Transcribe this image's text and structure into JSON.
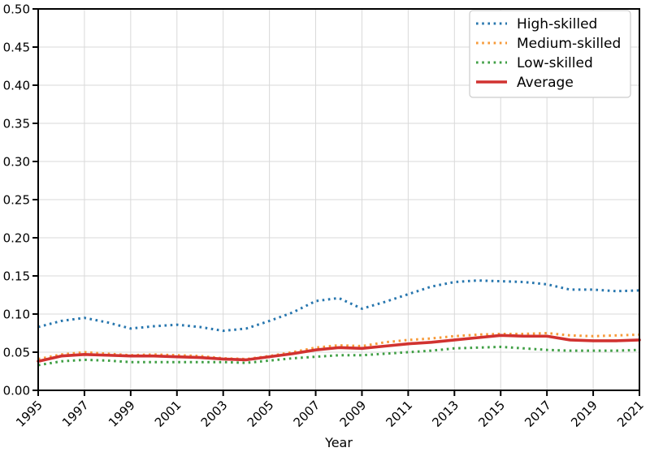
{
  "figure": {
    "background": "#ffffff",
    "grid_color": "#d9d9d9",
    "spine_color": "#000000",
    "legend": {
      "position": "upper right",
      "bg": "#ffffff",
      "border_color": "#cccccc"
    }
  },
  "chart_data": {
    "type": "line",
    "title": "",
    "xlabel": "Year",
    "ylabel": "",
    "grid": true,
    "legend_position": "upper right",
    "xlim": [
      1995,
      2021
    ],
    "ylim": [
      0.0,
      0.5
    ],
    "x": [
      1995,
      1996,
      1997,
      1998,
      1999,
      2000,
      2001,
      2002,
      2003,
      2004,
      2005,
      2006,
      2007,
      2008,
      2009,
      2010,
      2011,
      2012,
      2013,
      2014,
      2015,
      2016,
      2017,
      2018,
      2019,
      2020,
      2021
    ],
    "xtick_values": [
      1995,
      1997,
      1999,
      2001,
      2003,
      2005,
      2007,
      2009,
      2011,
      2013,
      2015,
      2017,
      2019,
      2021
    ],
    "xtick_labels": [
      "1995",
      "1997",
      "1999",
      "2001",
      "2003",
      "2005",
      "2007",
      "2009",
      "2011",
      "2013",
      "2015",
      "2017",
      "2019",
      "2021"
    ],
    "ytick_values": [
      0.0,
      0.05,
      0.1,
      0.15,
      0.2,
      0.25,
      0.3,
      0.35,
      0.4,
      0.45,
      0.5
    ],
    "ytick_labels": [
      "0.00",
      "0.05",
      "0.10",
      "0.15",
      "0.20",
      "0.25",
      "0.30",
      "0.35",
      "0.40",
      "0.45",
      "0.50"
    ],
    "series": [
      {
        "name": "High-skilled",
        "color": "#2776ae",
        "linestyle": "dotted",
        "linewidth": 3,
        "values": [
          0.083,
          0.091,
          0.095,
          0.089,
          0.081,
          0.084,
          0.086,
          0.083,
          0.078,
          0.081,
          0.091,
          0.102,
          0.117,
          0.121,
          0.107,
          0.116,
          0.126,
          0.136,
          0.142,
          0.144,
          0.143,
          0.142,
          0.139,
          0.132,
          0.132,
          0.13,
          0.131
        ]
      },
      {
        "name": "Medium-skilled",
        "color": "#f79a38",
        "linestyle": "dotted",
        "linewidth": 3,
        "values": [
          0.041,
          0.047,
          0.05,
          0.048,
          0.046,
          0.047,
          0.046,
          0.045,
          0.042,
          0.041,
          0.045,
          0.05,
          0.056,
          0.059,
          0.058,
          0.063,
          0.066,
          0.068,
          0.071,
          0.073,
          0.074,
          0.074,
          0.075,
          0.072,
          0.071,
          0.072,
          0.073
        ]
      },
      {
        "name": "Low-skilled",
        "color": "#3f9f44",
        "linestyle": "dotted",
        "linewidth": 3,
        "values": [
          0.033,
          0.038,
          0.04,
          0.039,
          0.037,
          0.037,
          0.037,
          0.037,
          0.037,
          0.036,
          0.039,
          0.042,
          0.044,
          0.046,
          0.046,
          0.048,
          0.05,
          0.052,
          0.055,
          0.056,
          0.057,
          0.055,
          0.053,
          0.052,
          0.052,
          0.052,
          0.053
        ]
      },
      {
        "name": "Average",
        "color": "#d13230",
        "linestyle": "solid",
        "linewidth": 3.6,
        "values": [
          0.038,
          0.045,
          0.047,
          0.046,
          0.045,
          0.045,
          0.044,
          0.043,
          0.041,
          0.04,
          0.044,
          0.048,
          0.053,
          0.056,
          0.055,
          0.058,
          0.061,
          0.063,
          0.066,
          0.069,
          0.072,
          0.071,
          0.071,
          0.066,
          0.065,
          0.065,
          0.066
        ]
      }
    ]
  }
}
